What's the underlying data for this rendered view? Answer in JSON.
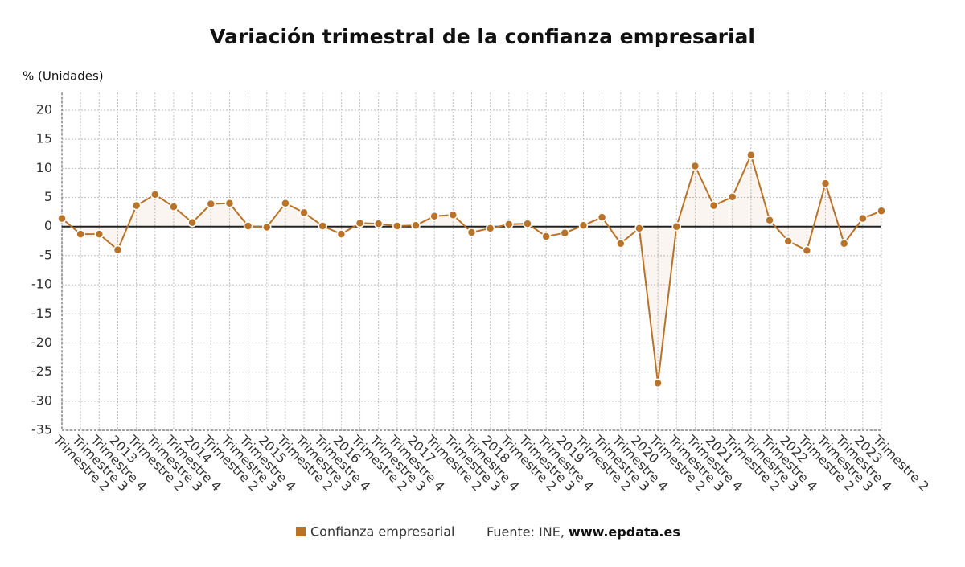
{
  "chart_data": {
    "type": "line",
    "title": "Variación trimestral de la confianza empresarial",
    "y_label": "% (Unidades)",
    "categories": [
      "Trimestre 2",
      "Trimestre 3",
      "Trimestre 4",
      "2013",
      "Trimestre 2",
      "Trimestre 3",
      "Trimestre 4",
      "2014",
      "Trimestre 2",
      "Trimestre 3",
      "Trimestre 4",
      "2015",
      "Trimestre 2",
      "Trimestre 3",
      "Trimestre 4",
      "2016",
      "Trimestre 2",
      "Trimestre 3",
      "Trimestre 4",
      "2017",
      "Trimestre 2",
      "Trimestre 3",
      "Trimestre 4",
      "2018",
      "Trimestre 2",
      "Trimestre 3",
      "Trimestre 4",
      "2019",
      "Trimestre 2",
      "Trimestre 3",
      "Trimestre 4",
      "2020",
      "Trimestre 2",
      "Trimestre 3",
      "Trimestre 4",
      "2021",
      "Trimestre 2",
      "Trimestre 3",
      "Trimestre 4",
      "2022",
      "Trimestre 2",
      "Trimestre 3",
      "Trimestre 4",
      "2023",
      "Trimestre 2"
    ],
    "series": [
      {
        "name": "Confianza empresarial",
        "color": "#b87328",
        "values": [
          1.4,
          -1.3,
          -1.3,
          -4,
          3.6,
          5.5,
          3.4,
          0.7,
          3.9,
          4,
          0.1,
          -0.1,
          4,
          2.4,
          0.1,
          -1.3,
          0.6,
          0.5,
          0.1,
          0.2,
          1.8,
          2,
          -1,
          -0.3,
          0.4,
          0.5,
          -1.7,
          -1.1,
          0.2,
          1.6,
          -2.9,
          -0.3,
          -26.9,
          0,
          10.4,
          3.6,
          5.1,
          12.3,
          1.1,
          -2.5,
          -4.1,
          7.4,
          -2.9,
          1.4,
          2.7
        ]
      }
    ],
    "ylim": [
      -35,
      23
    ],
    "yticks": [
      -35,
      -30,
      -25,
      -20,
      -15,
      -10,
      -5,
      0,
      5,
      10,
      15,
      20
    ],
    "grid": true,
    "source": "Fuente: INE,",
    "source_link": "www.epdata.es"
  }
}
